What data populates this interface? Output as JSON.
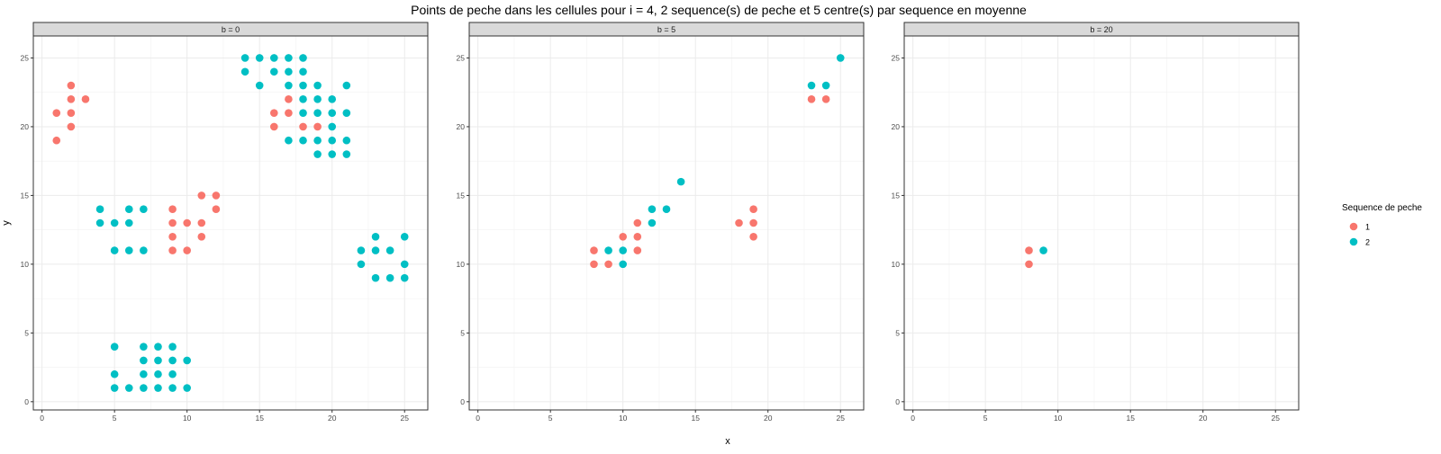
{
  "chart_data": {
    "type": "scatter",
    "title": "Points de peche dans les cellules pour i = 4, 2 sequence(s) de peche et 5 centre(s) par sequence en moyenne",
    "xlabel": "x",
    "ylabel": "y",
    "xlim": [
      -0.6,
      26.6
    ],
    "ylim": [
      -0.6,
      26.6
    ],
    "x_ticks": [
      0,
      5,
      10,
      15,
      20,
      25
    ],
    "y_ticks": [
      0,
      5,
      10,
      15,
      20,
      25
    ],
    "x_tick_labels": [
      "0",
      "5",
      "10",
      "15",
      "20",
      "25"
    ],
    "y_tick_labels": [
      "0",
      "5",
      "10",
      "15",
      "20",
      "25"
    ],
    "grid": true,
    "legend": {
      "title": "Sequence de peche",
      "position": "right",
      "entries": [
        {
          "label": "1",
          "color": "#F8766D"
        },
        {
          "label": "2",
          "color": "#00BFC4"
        }
      ]
    },
    "panels": [
      {
        "label": "b = 0",
        "series": [
          {
            "name": "1",
            "color": "#F8766D",
            "points": [
              [
                1,
                21
              ],
              [
                1,
                19
              ],
              [
                2,
                23
              ],
              [
                2,
                22
              ],
              [
                2,
                21
              ],
              [
                2,
                20
              ],
              [
                3,
                22
              ],
              [
                9,
                14
              ],
              [
                9,
                13
              ],
              [
                9,
                12
              ],
              [
                9,
                11
              ],
              [
                10,
                13
              ],
              [
                10,
                11
              ],
              [
                11,
                15
              ],
              [
                11,
                13
              ],
              [
                11,
                12
              ],
              [
                12,
                15
              ],
              [
                12,
                14
              ],
              [
                16,
                21
              ],
              [
                16,
                20
              ],
              [
                17,
                22
              ],
              [
                17,
                21
              ],
              [
                18,
                20
              ],
              [
                19,
                20
              ]
            ]
          },
          {
            "name": "2",
            "color": "#00BFC4",
            "points": [
              [
                14,
                25
              ],
              [
                14,
                24
              ],
              [
                15,
                25
              ],
              [
                15,
                23
              ],
              [
                16,
                25
              ],
              [
                16,
                24
              ],
              [
                17,
                25
              ],
              [
                17,
                24
              ],
              [
                17,
                23
              ],
              [
                17,
                19
              ],
              [
                18,
                25
              ],
              [
                18,
                24
              ],
              [
                18,
                23
              ],
              [
                18,
                22
              ],
              [
                18,
                21
              ],
              [
                18,
                19
              ],
              [
                19,
                23
              ],
              [
                19,
                22
              ],
              [
                19,
                21
              ],
              [
                19,
                19
              ],
              [
                19,
                18
              ],
              [
                20,
                22
              ],
              [
                20,
                21
              ],
              [
                20,
                20
              ],
              [
                20,
                19
              ],
              [
                20,
                18
              ],
              [
                21,
                23
              ],
              [
                21,
                21
              ],
              [
                21,
                19
              ],
              [
                21,
                18
              ],
              [
                4,
                14
              ],
              [
                4,
                13
              ],
              [
                5,
                13
              ],
              [
                5,
                11
              ],
              [
                6,
                14
              ],
              [
                6,
                13
              ],
              [
                6,
                11
              ],
              [
                7,
                14
              ],
              [
                7,
                11
              ],
              [
                22,
                11
              ],
              [
                22,
                10
              ],
              [
                23,
                12
              ],
              [
                23,
                11
              ],
              [
                23,
                9
              ],
              [
                24,
                11
              ],
              [
                24,
                9
              ],
              [
                25,
                12
              ],
              [
                25,
                10
              ],
              [
                25,
                9
              ],
              [
                5,
                4
              ],
              [
                5,
                2
              ],
              [
                5,
                1
              ],
              [
                6,
                1
              ],
              [
                7,
                4
              ],
              [
                7,
                3
              ],
              [
                7,
                2
              ],
              [
                7,
                1
              ],
              [
                8,
                4
              ],
              [
                8,
                3
              ],
              [
                8,
                2
              ],
              [
                8,
                1
              ],
              [
                9,
                4
              ],
              [
                9,
                3
              ],
              [
                9,
                2
              ],
              [
                9,
                1
              ],
              [
                10,
                3
              ],
              [
                10,
                1
              ]
            ]
          }
        ]
      },
      {
        "label": "b = 5",
        "series": [
          {
            "name": "1",
            "color": "#F8766D",
            "points": [
              [
                8,
                11
              ],
              [
                8,
                10
              ],
              [
                9,
                10
              ],
              [
                10,
                12
              ],
              [
                11,
                13
              ],
              [
                11,
                12
              ],
              [
                11,
                11
              ],
              [
                18,
                13
              ],
              [
                19,
                14
              ],
              [
                19,
                13
              ],
              [
                19,
                12
              ],
              [
                23,
                22
              ],
              [
                24,
                22
              ]
            ]
          },
          {
            "name": "2",
            "color": "#00BFC4",
            "points": [
              [
                9,
                11
              ],
              [
                10,
                11
              ],
              [
                10,
                10
              ],
              [
                12,
                14
              ],
              [
                12,
                13
              ],
              [
                13,
                14
              ],
              [
                14,
                16
              ],
              [
                23,
                23
              ],
              [
                24,
                23
              ],
              [
                25,
                25
              ]
            ]
          }
        ]
      },
      {
        "label": "b = 20",
        "series": [
          {
            "name": "1",
            "color": "#F8766D",
            "points": [
              [
                8,
                11
              ],
              [
                8,
                10
              ]
            ]
          },
          {
            "name": "2",
            "color": "#00BFC4",
            "points": [
              [
                9,
                11
              ]
            ]
          }
        ]
      }
    ]
  }
}
